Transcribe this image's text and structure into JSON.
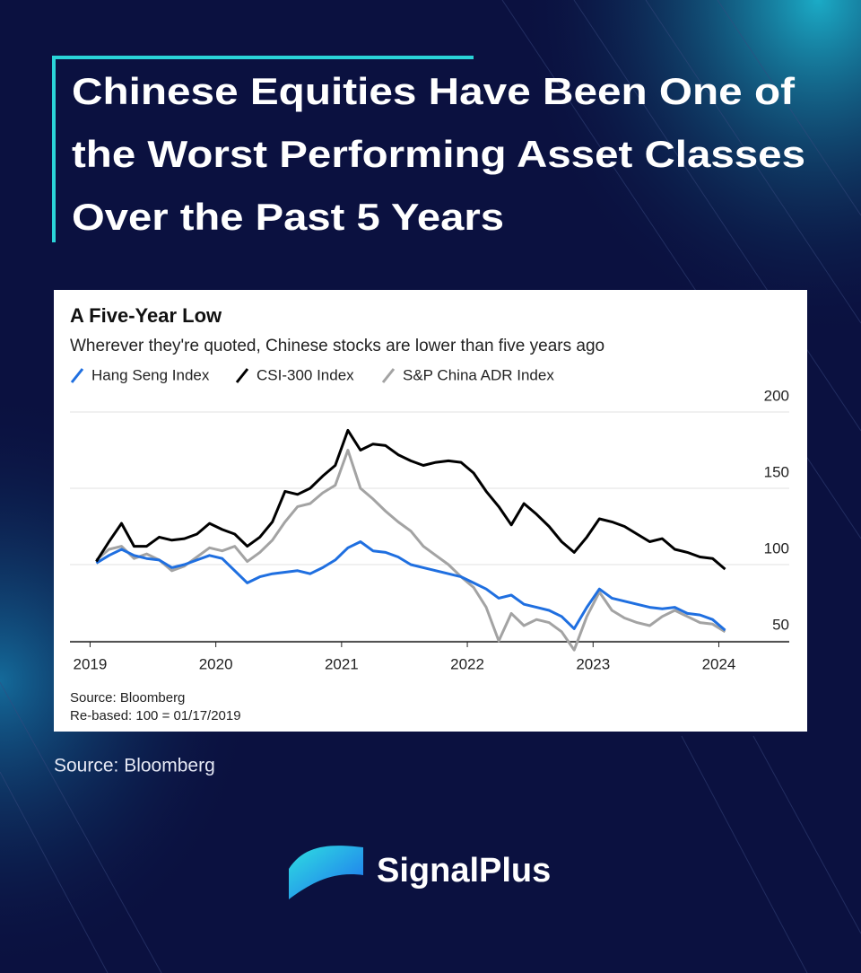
{
  "headline": [
    "Chinese Equities Have Been One of",
    "the Worst Performing Asset Classes",
    "Over the Past 5 Years"
  ],
  "footer_source": "Source: Bloomberg",
  "brand": "SignalPlus",
  "chart_data": {
    "type": "line",
    "title": "A Five-Year Low",
    "subtitle": "Wherever they're quoted, Chinese stocks are lower than five years ago",
    "source": "Source: Bloomberg",
    "note": "Re-based: 100 = 01/17/2019",
    "x": [
      2019.05,
      2019.15,
      2019.25,
      2019.35,
      2019.45,
      2019.55,
      2019.65,
      2019.75,
      2019.85,
      2019.95,
      2020.05,
      2020.15,
      2020.25,
      2020.35,
      2020.45,
      2020.55,
      2020.65,
      2020.75,
      2020.85,
      2020.95,
      2021.05,
      2021.15,
      2021.25,
      2021.35,
      2021.45,
      2021.55,
      2021.65,
      2021.75,
      2021.85,
      2021.95,
      2022.05,
      2022.15,
      2022.25,
      2022.35,
      2022.45,
      2022.55,
      2022.65,
      2022.75,
      2022.85,
      2022.95,
      2023.05,
      2023.15,
      2023.25,
      2023.35,
      2023.45,
      2023.55,
      2023.65,
      2023.75,
      2023.85,
      2023.95,
      2024.05
    ],
    "series": [
      {
        "name": "Hang Seng Index",
        "color": "#1f6fe0",
        "values": [
          101,
          106,
          110,
          106,
          104,
          103,
          98,
          100,
          103,
          106,
          104,
          96,
          88,
          92,
          94,
          95,
          96,
          94,
          98,
          103,
          111,
          115,
          109,
          108,
          105,
          100,
          98,
          96,
          94,
          92,
          88,
          84,
          78,
          80,
          74,
          72,
          70,
          66,
          58,
          72,
          84,
          78,
          76,
          74,
          72,
          71,
          72,
          68,
          67,
          64,
          57
        ]
      },
      {
        "name": "CSI-300 Index",
        "color": "#000000",
        "values": [
          102,
          115,
          127,
          112,
          112,
          118,
          116,
          117,
          120,
          127,
          123,
          120,
          112,
          118,
          128,
          148,
          146,
          150,
          158,
          165,
          188,
          175,
          179,
          178,
          172,
          168,
          165,
          167,
          168,
          167,
          160,
          148,
          138,
          126,
          140,
          133,
          125,
          115,
          108,
          118,
          130,
          128,
          125,
          120,
          115,
          117,
          110,
          108,
          105,
          104,
          97
        ]
      },
      {
        "name": "S&P China ADR Index",
        "color": "#a3a3a3",
        "values": [
          103,
          110,
          112,
          104,
          107,
          103,
          96,
          99,
          105,
          111,
          109,
          112,
          102,
          108,
          116,
          128,
          138,
          140,
          147,
          152,
          175,
          150,
          143,
          135,
          128,
          122,
          112,
          106,
          100,
          92,
          85,
          72,
          50,
          68,
          60,
          64,
          62,
          56,
          44,
          66,
          82,
          70,
          65,
          62,
          60,
          66,
          70,
          66,
          62,
          61,
          56
        ]
      }
    ],
    "xlim": [
      2018.84,
      2024.56
    ],
    "xticks": [
      2019,
      2020,
      2021,
      2022,
      2023,
      2024
    ],
    "ylim": [
      50,
      200
    ],
    "yticks": [
      50,
      100,
      150,
      200
    ],
    "grid": true
  }
}
